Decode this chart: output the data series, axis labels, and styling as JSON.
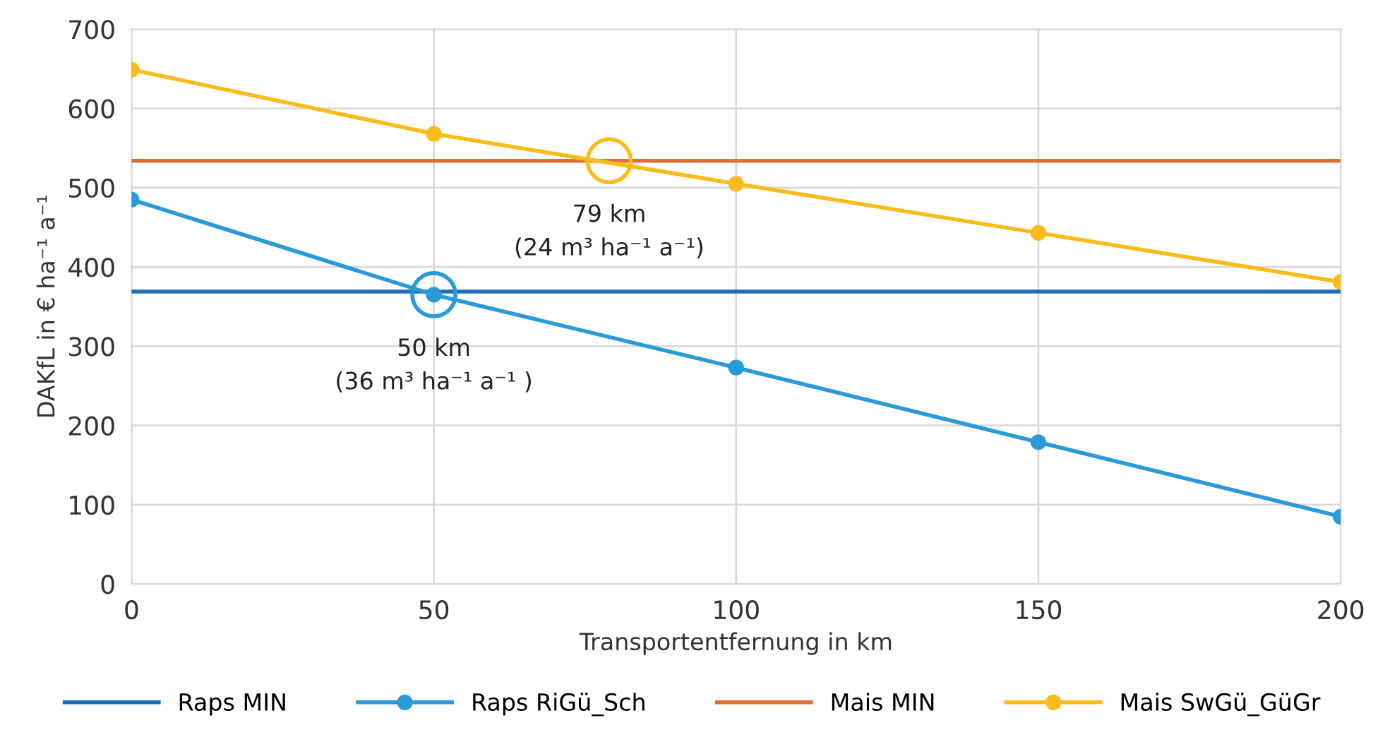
{
  "chart_data": {
    "type": "line",
    "xlabel": "Transportentfernung in km",
    "ylabel": "DAKfL in € ha⁻¹ a⁻¹",
    "x": [
      0,
      50,
      100,
      150,
      200
    ],
    "series": [
      {
        "name": "Raps MIN",
        "color": "#1f6fb4",
        "values": [
          369,
          369,
          369,
          369,
          369
        ],
        "marker": "none"
      },
      {
        "name": "Raps RiGü_Sch",
        "color": "#2a9ad8",
        "values": [
          485,
          365,
          273,
          179,
          85
        ],
        "marker": "circle"
      },
      {
        "name": "Mais MIN",
        "color": "#e0703a",
        "values": [
          534,
          534,
          534,
          534,
          534
        ],
        "marker": "none"
      },
      {
        "name": "Mais SwGü_GüGr",
        "color": "#fbbb1b",
        "values": [
          649,
          568,
          505,
          443,
          381
        ],
        "marker": "circle"
      }
    ],
    "annotations": [
      {
        "text": "79 km\n(24 m³ ha⁻¹ a⁻¹)",
        "x": 79,
        "y": 534
      },
      {
        "text": "50 km\n(36 m³ ha⁻¹ a⁻¹ )",
        "x": 50,
        "y": 365
      }
    ],
    "xlim": [
      0,
      200
    ],
    "xticks": [
      0,
      50,
      100,
      150,
      200
    ],
    "ylim": [
      0,
      700
    ],
    "yticks": [
      0,
      100,
      200,
      300,
      400,
      500,
      600,
      700
    ],
    "grid": true,
    "legend": "bottom"
  }
}
